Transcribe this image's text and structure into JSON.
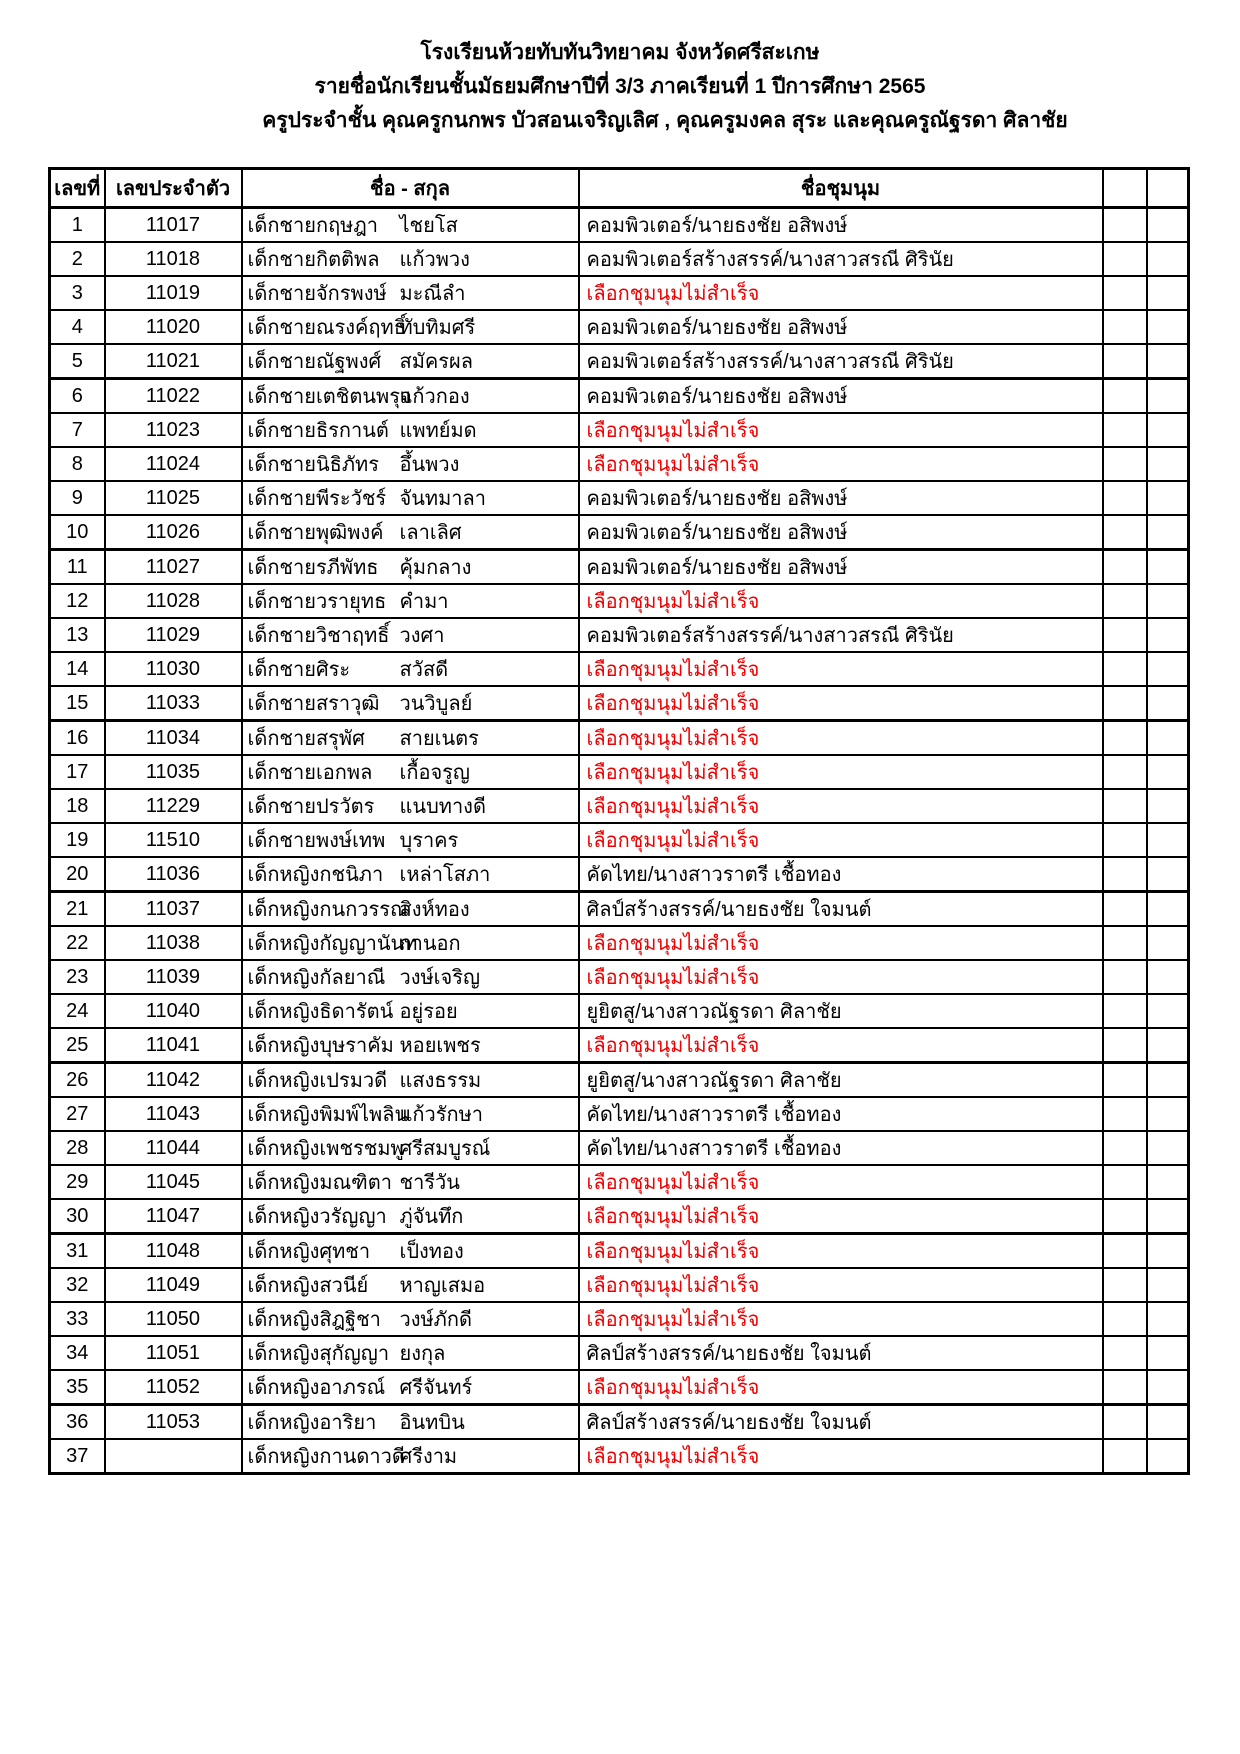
{
  "header": {
    "line1": "โรงเรียนห้วยทับทันวิทยาคม  จังหวัดศรีสะเกษ",
    "line2": "รายชื่อนักเรียนชั้นมัธยมศึกษาปีที่ 3/3  ภาคเรียนที่ 1  ปีการศึกษา  2565",
    "line3": "ครูประจำชั้น คุณครูกนกพร  บัวสอนเจริญเลิศ , คุณครูมงคล  สุระ และคุณครูณัฐรดา  ศิลาชัย"
  },
  "table": {
    "columns": {
      "no": "เลขที่",
      "id": "เลขประจำตัว",
      "name": "ชื่อ - สกุล",
      "club": "ชื่อชุมนุม",
      "extra1": "",
      "extra2": ""
    },
    "fail_text": "เลือกชุมนุมไม่สำเร็จ",
    "colors": {
      "fail_red": "#ee0000",
      "text": "#000000",
      "border": "#000000"
    },
    "rows": [
      {
        "no": "1",
        "id": "11017",
        "first": "เด็กชายกฤษฎา",
        "last": "ไชยโส",
        "club": "คอมพิวเตอร์/นายธงชัย  อสิพงษ์",
        "fail": false
      },
      {
        "no": "2",
        "id": "11018",
        "first": "เด็กชายกิตติพล",
        "last": "แก้วพวง",
        "club": "คอมพิวเตอร์สร้างสรรค์/นางสาวสรณี  ศิรินัย",
        "fail": false
      },
      {
        "no": "3",
        "id": "11019",
        "first": "เด็กชายจักรพงษ์",
        "last": "มะณีลำ",
        "club": "",
        "fail": true
      },
      {
        "no": "4",
        "id": "11020",
        "first": "เด็กชายณรงค์ฤทธิ์",
        "last": "ทับทิมศรี",
        "club": "คอมพิวเตอร์/นายธงชัย  อสิพงษ์",
        "fail": false
      },
      {
        "no": "5",
        "id": "11021",
        "first": "เด็กชายณัฐพงศ์",
        "last": "สมัครผล",
        "club": "คอมพิวเตอร์สร้างสรรค์/นางสาวสรณี  ศิรินัย",
        "fail": false
      },
      {
        "no": "6",
        "id": "11022",
        "first": "เด็กชายเตชิตนพรุจ",
        "last": "แก้วกอง",
        "club": "คอมพิวเตอร์/นายธงชัย  อสิพงษ์",
        "fail": false
      },
      {
        "no": "7",
        "id": "11023",
        "first": "เด็กชายธิรกานต์",
        "last": "แพทย์มด",
        "club": "",
        "fail": true
      },
      {
        "no": "8",
        "id": "11024",
        "first": "เด็กชายนิธิภัทร",
        "last": "อึ้นพวง",
        "club": "",
        "fail": true
      },
      {
        "no": "9",
        "id": "11025",
        "first": "เด็กชายพีระวัชร์",
        "last": "จันทมาลา",
        "club": "คอมพิวเตอร์/นายธงชัย  อสิพงษ์",
        "fail": false
      },
      {
        "no": "10",
        "id": "11026",
        "first": "เด็กชายพุฒิพงค์",
        "last": "เลาเลิศ",
        "club": "คอมพิวเตอร์/นายธงชัย  อสิพงษ์",
        "fail": false
      },
      {
        "no": "11",
        "id": "11027",
        "first": "เด็กชายรภีพัทธ",
        "last": "คุ้มกลาง",
        "club": "คอมพิวเตอร์/นายธงชัย  อสิพงษ์",
        "fail": false
      },
      {
        "no": "12",
        "id": "11028",
        "first": "เด็กชายวรายุทธ",
        "last": "คำมา",
        "club": "",
        "fail": true
      },
      {
        "no": "13",
        "id": "11029",
        "first": "เด็กชายวิชาฤทธิ์",
        "last": "วงศา",
        "club": "คอมพิวเตอร์สร้างสรรค์/นางสาวสรณี  ศิรินัย",
        "fail": false
      },
      {
        "no": "14",
        "id": "11030",
        "first": "เด็กชายศิระ",
        "last": "สวัสดี",
        "club": "",
        "fail": true
      },
      {
        "no": "15",
        "id": "11033",
        "first": "เด็กชายสราวุฒิ",
        "last": "วนวิบูลย์",
        "club": "",
        "fail": true
      },
      {
        "no": "16",
        "id": "11034",
        "first": "เด็กชายสรุพัศ",
        "last": "สายเนตร",
        "club": "",
        "fail": true
      },
      {
        "no": "17",
        "id": "11035",
        "first": "เด็กชายเอกพล",
        "last": "เกื้อจรูญ",
        "club": "",
        "fail": true
      },
      {
        "no": "18",
        "id": "11229",
        "first": "เด็กชายปรวัตร",
        "last": "แนบทางดี",
        "club": "",
        "fail": true
      },
      {
        "no": "19",
        "id": "11510",
        "first": "เด็กชายพงษ์เทพ",
        "last": "บุราคร",
        "club": "",
        "fail": true
      },
      {
        "no": "20",
        "id": "11036",
        "first": "เด็กหญิงกชนิภา",
        "last": "เหล่าโสภา",
        "club": "คัดไทย/นางสาวราตรี เชื้อทอง",
        "fail": false
      },
      {
        "no": "21",
        "id": "11037",
        "first": "เด็กหญิงกนกวรรณ",
        "last": "สิงห์ทอง",
        "club": "ศิลป์สร้างสรรค์/นายธงชัย ใจมนต์",
        "fail": false
      },
      {
        "no": "22",
        "id": "11038",
        "first": "เด็กหญิงกัญญานันท",
        "last": "กานอก",
        "club": "",
        "fail": true
      },
      {
        "no": "23",
        "id": "11039",
        "first": "เด็กหญิงกัลยาณี",
        "last": "วงษ์เจริญ",
        "club": "",
        "fail": true
      },
      {
        "no": "24",
        "id": "11040",
        "first": "เด็กหญิงธิดารัตน์",
        "last": "อยู่รอย",
        "club": "ยูยิตสู/นางสาวณัฐรดา ศิลาชัย",
        "fail": false
      },
      {
        "no": "25",
        "id": "11041",
        "first": "เด็กหญิงบุษราคัม",
        "last": "หอยเพชร",
        "club": "",
        "fail": true
      },
      {
        "no": "26",
        "id": "11042",
        "first": "เด็กหญิงเปรมวดี",
        "last": "แสงธรรม",
        "club": "ยูยิตสู/นางสาวณัฐรดา ศิลาชัย",
        "fail": false
      },
      {
        "no": "27",
        "id": "11043",
        "first": "เด็กหญิงพิมพ์ไพลิน",
        "last": "แก้วรักษา",
        "club": "คัดไทย/นางสาวราตรี เชื้อทอง",
        "fail": false
      },
      {
        "no": "28",
        "id": "11044",
        "first": "เด็กหญิงเพชรชมพู",
        "last": "ศรีสมบูรณ์",
        "club": "คัดไทย/นางสาวราตรี เชื้อทอง",
        "fail": false
      },
      {
        "no": "29",
        "id": "11045",
        "first": "เด็กหญิงมณฑิตา",
        "last": "ชารีวัน",
        "club": "",
        "fail": true
      },
      {
        "no": "30",
        "id": "11047",
        "first": "เด็กหญิงวรัญญา",
        "last": "ภู่จันทึก",
        "club": "",
        "fail": true
      },
      {
        "no": "31",
        "id": "11048",
        "first": "เด็กหญิงศุทชา",
        "last": "เป็งทอง",
        "club": "",
        "fail": true
      },
      {
        "no": "32",
        "id": "11049",
        "first": "เด็กหญิงสวนีย์",
        "last": "หาญเสมอ",
        "club": "",
        "fail": true
      },
      {
        "no": "33",
        "id": "11050",
        "first": "เด็กหญิงสิฎฐิชา",
        "last": "วงษ์ภักดี",
        "club": "",
        "fail": true
      },
      {
        "no": "34",
        "id": "11051",
        "first": "เด็กหญิงสุกัญญา",
        "last": "ยงกุล",
        "club": "ศิลป์สร้างสรรค์/นายธงชัย ใจมนต์",
        "fail": false
      },
      {
        "no": "35",
        "id": "11052",
        "first": "เด็กหญิงอาภรณ์",
        "last": "ศรีจันทร์",
        "club": "",
        "fail": true
      },
      {
        "no": "36",
        "id": "11053",
        "first": "เด็กหญิงอาริยา",
        "last": "อินทบิน",
        "club": "ศิลป์สร้างสรรค์/นายธงชัย ใจมนต์",
        "fail": false
      },
      {
        "no": "37",
        "id": "",
        "first": "เด็กหญิงกานดาวดี",
        "last": "ศรีงาม",
        "club": "",
        "fail": true
      }
    ]
  }
}
